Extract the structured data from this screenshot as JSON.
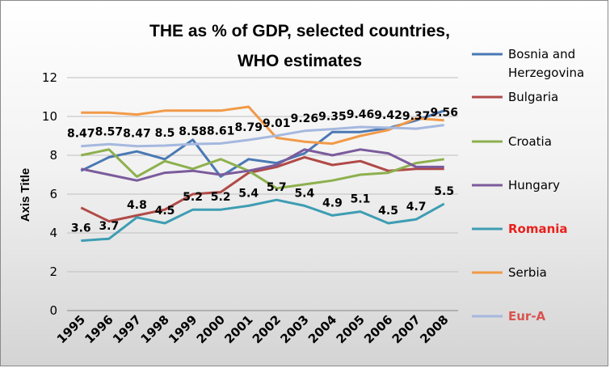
{
  "chart_data": {
    "type": "line",
    "title_lines": [
      "THE as % of GDP, selected countries,",
      "WHO estimates"
    ],
    "xlabel": "",
    "ylabel": "Axis Title",
    "ylim": [
      0,
      12
    ],
    "yticks": [
      0,
      2,
      4,
      6,
      8,
      10,
      12
    ],
    "grid": true,
    "legend_position": "right",
    "x": [
      "1995",
      "1996",
      "1997",
      "1998",
      "1999",
      "2000",
      "2001",
      "2002",
      "2003",
      "2004",
      "2005",
      "2006",
      "2007",
      "2008"
    ],
    "series": [
      {
        "name": "Bosnia and Herzegovina",
        "name_lines": [
          "Bosnia and",
          "Herzegovina"
        ],
        "color": "#4a78b4",
        "legend_color": "#000000",
        "legend_bold": false,
        "values": [
          7.2,
          7.9,
          8.2,
          7.8,
          8.8,
          6.9,
          7.8,
          7.6,
          8.1,
          9.2,
          9.2,
          9.4,
          9.8,
          10.3
        ]
      },
      {
        "name": "Bulgaria",
        "name_lines": [
          "Bulgaria"
        ],
        "color": "#b04a47",
        "legend_color": "#000000",
        "legend_bold": false,
        "values": [
          5.3,
          4.6,
          4.9,
          5.2,
          6.0,
          6.1,
          7.1,
          7.4,
          7.9,
          7.5,
          7.7,
          7.2,
          7.3,
          7.3
        ]
      },
      {
        "name": "Croatia",
        "name_lines": [
          "Croatia"
        ],
        "color": "#8db04e",
        "legend_color": "#000000",
        "legend_bold": false,
        "values": [
          8.0,
          8.3,
          6.9,
          7.7,
          7.3,
          7.8,
          7.2,
          6.3,
          6.5,
          6.7,
          7.0,
          7.1,
          7.6,
          7.8
        ]
      },
      {
        "name": "Hungary",
        "name_lines": [
          "Hungary"
        ],
        "color": "#7b5b9c",
        "legend_color": "#000000",
        "legend_bold": false,
        "values": [
          7.3,
          7.0,
          6.7,
          7.1,
          7.2,
          7.0,
          7.2,
          7.5,
          8.3,
          8.0,
          8.3,
          8.1,
          7.4,
          7.4
        ]
      },
      {
        "name": "Romania",
        "name_lines": [
          "Romania"
        ],
        "color": "#3e9db3",
        "legend_color": "#e8211d",
        "legend_bold": true,
        "values": [
          3.6,
          3.7,
          4.8,
          4.5,
          5.2,
          5.2,
          5.4,
          5.7,
          5.4,
          4.9,
          5.1,
          4.5,
          4.7,
          5.5
        ],
        "labels": [
          "3.6",
          "3.7",
          "4.8",
          "4.5",
          "5.2",
          "5.2",
          "5.4",
          "5.7",
          "5.4",
          "4.9",
          "5.1",
          "4.5",
          "4.7",
          "5.5"
        ]
      },
      {
        "name": "Serbia",
        "name_lines": [
          "Serbia"
        ],
        "color": "#f19a48",
        "legend_color": "#000000",
        "legend_bold": false,
        "values": [
          10.2,
          10.2,
          10.1,
          10.3,
          10.3,
          10.3,
          10.5,
          8.9,
          8.7,
          8.6,
          9.0,
          9.3,
          9.9,
          9.8
        ]
      },
      {
        "name": "Eur-A",
        "name_lines": [
          "Eur-A"
        ],
        "color": "#a5b8df",
        "legend_color": "#d9534f",
        "legend_bold": true,
        "values": [
          8.47,
          8.57,
          8.47,
          8.5,
          8.58,
          8.61,
          8.79,
          9.01,
          9.26,
          9.35,
          9.46,
          9.42,
          9.37,
          9.56
        ],
        "labels": [
          "8.47",
          "8.57",
          "8.47",
          "8.5",
          "8.58",
          "8.61",
          "8.79",
          "9.01",
          "9.26",
          "9.35",
          "9.46",
          "9.42",
          "9.37",
          "9.56"
        ]
      }
    ]
  }
}
